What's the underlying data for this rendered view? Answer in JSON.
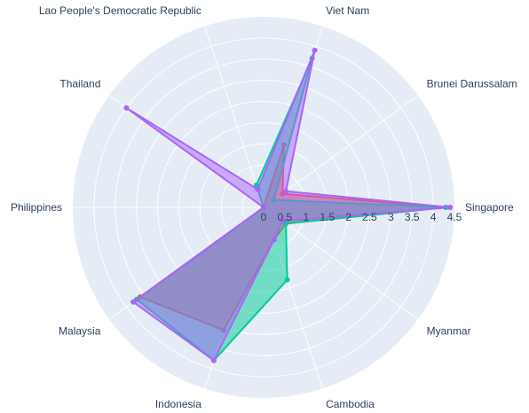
{
  "chart_data": {
    "type": "radar",
    "categories": [
      "Singapore",
      "Brunei Darussalam",
      "Viet Nam",
      "Lao People's Democratic Republic",
      "Thailand",
      "Philippines",
      "Malaysia",
      "Indonesia",
      "Cambodia",
      "Myanmar"
    ],
    "radial_ticks": [
      "0",
      "0.5",
      "1",
      "1.5",
      "2",
      "2.5",
      "3",
      "3.5",
      "4",
      "4.5"
    ],
    "rlim": [
      0,
      4.5
    ],
    "series": [
      {
        "color": "#EF553B",
        "values": [
          4.3,
          0.55,
          1.55,
          0.0,
          0.0,
          0.0,
          3.6,
          3.05,
          0.8,
          0.65
        ]
      },
      {
        "color": "#00CC96",
        "values": [
          4.3,
          0.3,
          3.7,
          0.55,
          0.0,
          0.0,
          3.7,
          3.8,
          1.8,
          0.65
        ]
      },
      {
        "color": "#AB63FA",
        "values": [
          4.4,
          0.65,
          3.9,
          0.45,
          4.0,
          0.0,
          3.8,
          3.8,
          0.8,
          0.55
        ]
      }
    ]
  }
}
